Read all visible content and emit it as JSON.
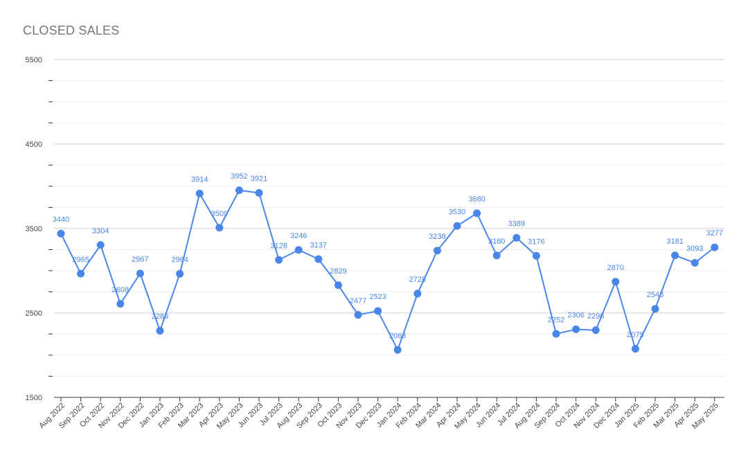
{
  "chart_data": {
    "type": "line",
    "title": "CLOSED SALES",
    "xlabel": "",
    "ylabel": "",
    "ylim": [
      1500,
      5500
    ],
    "yticks": [
      "1500",
      "2500",
      "3500",
      "4500",
      "5500"
    ],
    "grid": true,
    "legend": "none",
    "color": "#4a86e8",
    "categories": [
      "Aug 2022",
      "Sep 2022",
      "Oct 2022",
      "Nov 2022",
      "Dec 2022",
      "Jan 2023",
      "Feb 2023",
      "Mar 2023",
      "Apr 2023",
      "May 2023",
      "Jun 2023",
      "Jul 2023",
      "Aug 2023",
      "Sep 2023",
      "Oct 2023",
      "Nov 2023",
      "Dec 2023",
      "Jan 2024",
      "Feb 2024",
      "Mar 2024",
      "Apr 2024",
      "May 2024",
      "Jun 2024",
      "Jul 2024",
      "Aug 2024",
      "Sep 2024",
      "Oct 2024",
      "Nov 2024",
      "Dec 2024",
      "Jan 2025",
      "Feb 2025",
      "Mar 2025",
      "Apr 2025",
      "May 2025"
    ],
    "series": [
      {
        "values": [
          3440,
          2965,
          3304,
          2608,
          2967,
          2289,
          2964,
          3914,
          3509,
          3952,
          3921,
          3128,
          3246,
          3137,
          2829,
          2477,
          2523,
          2063,
          2728,
          3238,
          3530,
          3680,
          3180,
          3389,
          3176,
          2252,
          2306,
          2296,
          2870,
          2075,
          2548,
          3181,
          3093,
          3277
        ]
      }
    ]
  }
}
